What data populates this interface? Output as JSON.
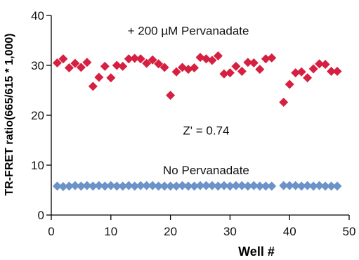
{
  "chart_data": {
    "type": "scatter",
    "xlabel": "Well #",
    "ylabel": "TR-FRET ratio(665/615 * 1,000)",
    "xlim": [
      0,
      50
    ],
    "ylim": [
      0,
      40
    ],
    "xticks": [
      0,
      10,
      20,
      30,
      40,
      50
    ],
    "yticks": [
      0,
      10,
      20,
      30,
      40
    ],
    "grid": false,
    "annotations": [
      {
        "text": "+ 200 µM Pervanadate",
        "x": 23,
        "y": 37
      },
      {
        "text": "Z' = 0.74",
        "x": 26,
        "y": 17
      },
      {
        "text": "No Pervanadate",
        "x": 26,
        "y": 9
      }
    ],
    "series": [
      {
        "color": "#d62041",
        "marker": "diamond",
        "x": [
          1,
          2,
          3,
          4,
          5,
          6,
          7,
          8,
          9,
          10,
          11,
          12,
          13,
          14,
          15,
          16,
          17,
          18,
          19,
          20,
          21,
          22,
          23,
          24,
          25,
          26,
          27,
          28,
          29,
          30,
          31,
          32,
          33,
          34,
          35,
          36,
          37,
          39,
          40,
          41,
          42,
          43,
          44,
          45,
          46,
          47,
          48
        ],
        "y": [
          30.5,
          31.3,
          29.5,
          30.4,
          29.6,
          30.6,
          25.8,
          27.6,
          29.8,
          27.5,
          30.0,
          29.8,
          31.3,
          31.4,
          31.3,
          30.4,
          31.1,
          30.3,
          29.6,
          24.0,
          28.7,
          29.6,
          29.2,
          29.5,
          31.6,
          31.3,
          31.0,
          31.9,
          28.3,
          28.5,
          29.8,
          28.8,
          30.6,
          30.5,
          29.2,
          31.3,
          31.5,
          22.6,
          26.2,
          28.5,
          28.7,
          27.5,
          29.3,
          30.3,
          30.2,
          28.8,
          28.8
        ]
      },
      {
        "color": "#6b93c8",
        "marker": "diamond",
        "x": [
          1,
          2,
          3,
          4,
          5,
          6,
          7,
          8,
          9,
          10,
          11,
          12,
          13,
          14,
          15,
          16,
          17,
          18,
          19,
          20,
          21,
          22,
          23,
          24,
          25,
          26,
          27,
          28,
          29,
          30,
          31,
          32,
          33,
          34,
          35,
          36,
          37,
          39,
          40,
          41,
          42,
          43,
          44,
          45,
          46,
          47,
          48
        ],
        "y": [
          5.8,
          5.7,
          5.8,
          5.9,
          5.8,
          5.9,
          5.8,
          5.9,
          5.8,
          5.9,
          5.8,
          5.8,
          5.9,
          5.8,
          5.9,
          5.9,
          5.9,
          5.8,
          5.8,
          5.8,
          5.8,
          5.9,
          5.8,
          5.8,
          5.9,
          5.9,
          5.9,
          5.8,
          5.9,
          5.8,
          5.9,
          5.9,
          5.8,
          5.9,
          5.8,
          5.8,
          5.8,
          5.9,
          5.9,
          5.9,
          5.8,
          5.9,
          5.8,
          5.9,
          5.8,
          5.8,
          5.8
        ]
      }
    ]
  }
}
